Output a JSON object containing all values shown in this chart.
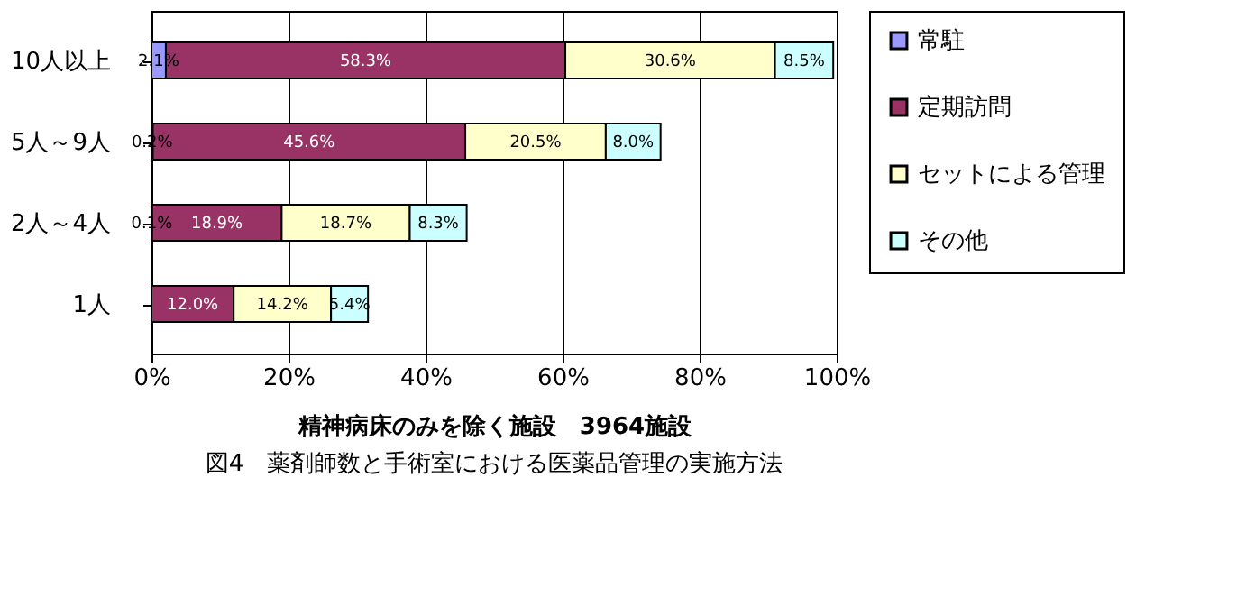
{
  "chart_data": {
    "type": "bar",
    "orientation": "horizontal",
    "stacked": true,
    "categories": [
      "10人以上",
      "5人～9人",
      "2人～4人",
      "1人"
    ],
    "series": [
      {
        "name": "常駐",
        "color": "#9999ff",
        "values": [
          2.1,
          0.2,
          0.1,
          null
        ],
        "value_labels": [
          "2.1%",
          "0.2%",
          "0.1%",
          null
        ]
      },
      {
        "name": "定期訪問",
        "color": "#993366",
        "values": [
          58.3,
          45.6,
          18.9,
          12.0
        ],
        "value_labels": [
          "58.3%",
          "45.6%",
          "18.9%",
          "12.0%"
        ]
      },
      {
        "name": "セットによる管理",
        "color": "#ffffcc",
        "values": [
          30.6,
          20.5,
          18.7,
          14.2
        ],
        "value_labels": [
          "30.6%",
          "20.5%",
          "18.7%",
          "14.2%"
        ]
      },
      {
        "name": "その他",
        "color": "#ccffff",
        "values": [
          8.5,
          8.0,
          8.3,
          5.4
        ],
        "value_labels": [
          "8.5%",
          "8.0%",
          "8.3%",
          "5.4%"
        ]
      }
    ],
    "xlim": [
      0,
      100
    ],
    "xticks": [
      {
        "value": 0,
        "label": "0%"
      },
      {
        "value": 20,
        "label": "20%"
      },
      {
        "value": 40,
        "label": "40%"
      },
      {
        "value": 60,
        "label": "60%"
      },
      {
        "value": 80,
        "label": "80%"
      },
      {
        "value": 100,
        "label": "100%"
      }
    ],
    "xlabel": "精神病床のみを除く施設　3964施設",
    "annotations": [
      "図4　薬剤師数と手術室における医薬品管理の実施方法"
    ],
    "grid": "x",
    "legend": "right"
  }
}
